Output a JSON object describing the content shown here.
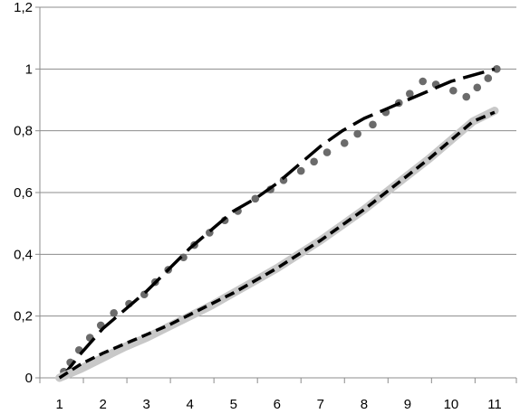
{
  "chart_data": {
    "type": "line",
    "title": "",
    "xlabel": "",
    "ylabel": "",
    "xlim": [
      0.55,
      11.5
    ],
    "ylim": [
      0,
      1.2
    ],
    "grid": "horizontal",
    "legend": "none",
    "x_ticks": [
      {
        "value": 1,
        "label": "1"
      },
      {
        "value": 2,
        "label": "2"
      },
      {
        "value": 3,
        "label": "3"
      },
      {
        "value": 4,
        "label": "4"
      },
      {
        "value": 5,
        "label": "5"
      },
      {
        "value": 6,
        "label": "6"
      },
      {
        "value": 7,
        "label": "7"
      },
      {
        "value": 8,
        "label": "8"
      },
      {
        "value": 9,
        "label": "9"
      },
      {
        "value": 10,
        "label": "10"
      },
      {
        "value": 11,
        "label": "11"
      }
    ],
    "y_ticks": [
      {
        "value": 0,
        "label": "0"
      },
      {
        "value": 0.2,
        "label": "0,2"
      },
      {
        "value": 0.4,
        "label": "0,4"
      },
      {
        "value": 0.6,
        "label": "0,6"
      },
      {
        "value": 0.8,
        "label": "0,8"
      },
      {
        "value": 1,
        "label": "1"
      },
      {
        "value": 1.2,
        "label": "1,2"
      }
    ],
    "series": [
      {
        "style": "dotted",
        "color": "#6b6b6b",
        "x": [
          1.1,
          1.25,
          1.45,
          1.7,
          1.95,
          2.25,
          2.6,
          2.95,
          3.2,
          3.5,
          3.85,
          4.1,
          4.45,
          4.8,
          5.1,
          5.5,
          5.85,
          6.15,
          6.55,
          6.85,
          7.15,
          7.55,
          7.85,
          8.2,
          8.5,
          8.8,
          9.05,
          9.35,
          9.65,
          10.05,
          10.35,
          10.6,
          10.85,
          11.05
        ],
        "y": [
          0.02,
          0.05,
          0.09,
          0.13,
          0.17,
          0.21,
          0.24,
          0.27,
          0.31,
          0.35,
          0.39,
          0.43,
          0.47,
          0.51,
          0.54,
          0.58,
          0.61,
          0.64,
          0.67,
          0.7,
          0.73,
          0.76,
          0.79,
          0.82,
          0.86,
          0.89,
          0.92,
          0.96,
          0.95,
          0.93,
          0.91,
          0.94,
          0.97,
          1.0
        ]
      },
      {
        "style": "long-dash",
        "color": "#000000",
        "x": [
          1.05,
          1.5,
          2,
          2.5,
          3,
          3.5,
          4,
          4.5,
          5,
          5.5,
          6,
          6.5,
          7,
          7.5,
          8,
          8.5,
          9,
          9.5,
          10,
          10.5,
          11
        ],
        "y": [
          0.0,
          0.08,
          0.16,
          0.22,
          0.28,
          0.35,
          0.42,
          0.48,
          0.54,
          0.58,
          0.63,
          0.69,
          0.75,
          0.8,
          0.84,
          0.87,
          0.9,
          0.93,
          0.96,
          0.98,
          1.0
        ]
      },
      {
        "style": "thick-solid",
        "color": "#c8c8c8",
        "x": [
          1,
          1.5,
          2,
          2.5,
          3,
          3.5,
          4,
          4.5,
          5,
          5.5,
          6,
          6.5,
          7,
          7.5,
          8,
          8.5,
          9,
          9.5,
          10,
          10.5,
          11
        ],
        "y": [
          0.0,
          0.03,
          0.065,
          0.1,
          0.13,
          0.165,
          0.2,
          0.235,
          0.275,
          0.315,
          0.355,
          0.4,
          0.445,
          0.495,
          0.545,
          0.6,
          0.655,
          0.71,
          0.77,
          0.83,
          0.865
        ]
      },
      {
        "style": "short-dash",
        "color": "#000000",
        "x": [
          1,
          1.5,
          2,
          2.5,
          3,
          3.5,
          4,
          4.5,
          5,
          5.5,
          6,
          6.5,
          7,
          7.5,
          8,
          8.5,
          9,
          9.5,
          10,
          10.5,
          11
        ],
        "y": [
          0.0,
          0.045,
          0.08,
          0.11,
          0.14,
          0.17,
          0.205,
          0.24,
          0.275,
          0.315,
          0.355,
          0.4,
          0.445,
          0.495,
          0.545,
          0.6,
          0.655,
          0.71,
          0.77,
          0.83,
          0.86
        ]
      }
    ]
  }
}
